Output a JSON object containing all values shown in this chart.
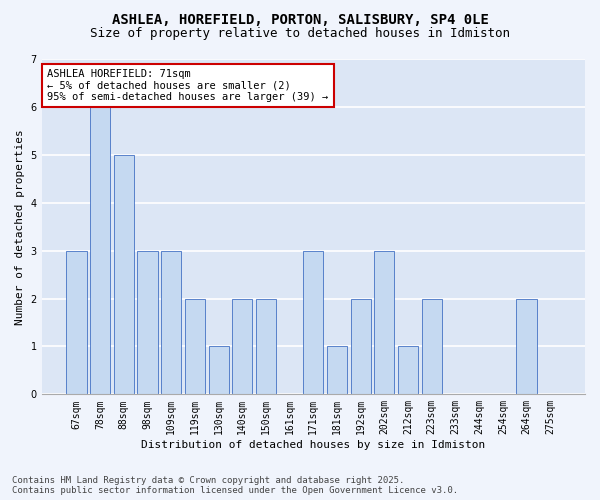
{
  "title_line1": "ASHLEA, HOREFIELD, PORTON, SALISBURY, SP4 0LE",
  "title_line2": "Size of property relative to detached houses in Idmiston",
  "xlabel": "Distribution of detached houses by size in Idmiston",
  "ylabel": "Number of detached properties",
  "categories": [
    "67sqm",
    "78sqm",
    "88sqm",
    "98sqm",
    "109sqm",
    "119sqm",
    "130sqm",
    "140sqm",
    "150sqm",
    "161sqm",
    "171sqm",
    "181sqm",
    "192sqm",
    "202sqm",
    "212sqm",
    "223sqm",
    "233sqm",
    "244sqm",
    "254sqm",
    "264sqm",
    "275sqm"
  ],
  "values": [
    3,
    6,
    5,
    3,
    3,
    2,
    1,
    2,
    2,
    0,
    3,
    1,
    2,
    3,
    1,
    2,
    0,
    0,
    0,
    2,
    0
  ],
  "bar_color": "#c5d9f1",
  "bar_edge_color": "#4472c4",
  "annotation_box_text": "ASHLEA HOREFIELD: 71sqm\n← 5% of detached houses are smaller (2)\n95% of semi-detached houses are larger (39) →",
  "annotation_box_color": "#ffffff",
  "annotation_box_edge_color": "#cc0000",
  "ylim": [
    0,
    7
  ],
  "yticks": [
    0,
    1,
    2,
    3,
    4,
    5,
    6,
    7
  ],
  "footnote": "Contains HM Land Registry data © Crown copyright and database right 2025.\nContains public sector information licensed under the Open Government Licence v3.0.",
  "bg_color": "#f0f4fc",
  "plot_bg_color": "#dce6f5",
  "grid_color": "#ffffff",
  "title_fontsize": 10,
  "subtitle_fontsize": 9,
  "axis_label_fontsize": 8,
  "tick_fontsize": 7,
  "annotation_fontsize": 7.5,
  "footnote_fontsize": 6.5
}
